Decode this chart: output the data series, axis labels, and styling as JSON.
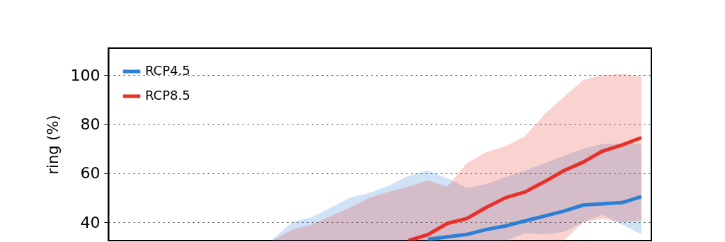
{
  "chart_data": {
    "type": "line",
    "ylabel": "ring (%)",
    "categories": [
      null,
      null,
      null,
      null,
      null,
      null,
      null,
      null,
      null,
      null,
      null,
      null,
      null,
      null,
      null,
      null,
      null,
      null,
      null,
      null
    ],
    "ylim": [
      32.5,
      111
    ],
    "yticks": [
      40,
      60,
      80,
      100
    ],
    "grid": "y",
    "legend": "top left",
    "tick_labels": "y",
    "series": [
      {
        "name": "RCP4.5",
        "color": "#2b80d6",
        "values": [
          null,
          null,
          null,
          null,
          null,
          null,
          null,
          null,
          33,
          34,
          35,
          37,
          38.5,
          40.5,
          42.5,
          44.5,
          47,
          47.5,
          48,
          50.4
        ],
        "upper": [
          33,
          40,
          42,
          46,
          50,
          52,
          55,
          59,
          61,
          58,
          54,
          55.5,
          58.5,
          61,
          64,
          67,
          70,
          72,
          72,
          72
        ],
        "lower": [
          32.5,
          32.5,
          32.5,
          32.5,
          32.5,
          32.5,
          32.5,
          32.5,
          32.5,
          32.5,
          32.5,
          32.5,
          32.5,
          35.5,
          35,
          36,
          40,
          43,
          39,
          35
        ]
      },
      {
        "name": "RCP8.5",
        "color": "#e8302a",
        "values": [
          null,
          null,
          null,
          null,
          null,
          null,
          null,
          32.5,
          34.9,
          39.5,
          41.5,
          46,
          50,
          52.3,
          56.5,
          61,
          64.5,
          69,
          71.5,
          74.5
        ],
        "upper": [
          32.5,
          37,
          39,
          42.5,
          46,
          50,
          52.5,
          54.5,
          57,
          54.5,
          64,
          68.5,
          71,
          75,
          84,
          91,
          98,
          100,
          100.5,
          99.4
        ],
        "lower": [
          32.5,
          32.5,
          32.5,
          32.5,
          32.5,
          32.5,
          32.5,
          32.5,
          32.5,
          32.5,
          32.5,
          32.5,
          32.5,
          32.5,
          32.5,
          32.5,
          40,
          41.4,
          40,
          40.7
        ]
      }
    ]
  }
}
